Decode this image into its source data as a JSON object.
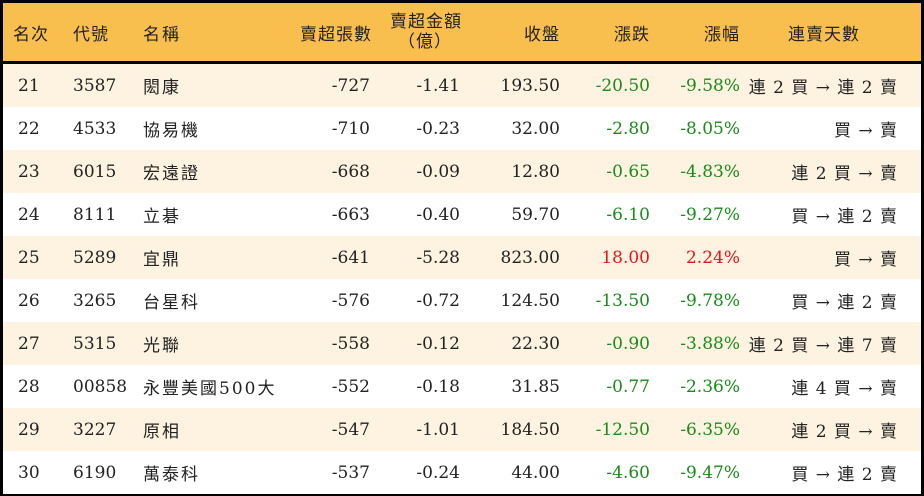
{
  "colors": {
    "header_bg": "#F9BF4E",
    "row_odd_bg": "#FDF3E0",
    "row_even_bg": "#FFFFFF",
    "down": "#1A8A1A",
    "up": "#E8141E",
    "border": "#000000"
  },
  "header": {
    "rank": "名次",
    "code": "代號",
    "name": "名稱",
    "net_sell_volume": "賣超張數",
    "net_sell_amount_line1": "賣超金額",
    "net_sell_amount_line2": "（億）",
    "close": "收盤",
    "change": "漲跌",
    "change_pct": "漲幅",
    "sell_streak": "連賣天數"
  },
  "rows": [
    {
      "rank": "21",
      "code": "3587",
      "name": "閎康",
      "volume": "-727",
      "amount": "-1.41",
      "close": "193.50",
      "change": "-20.50",
      "pct": "-9.58%",
      "streak": "連 2 買 → 連 2 賣",
      "dir": "down"
    },
    {
      "rank": "22",
      "code": "4533",
      "name": "協易機",
      "volume": "-710",
      "amount": "-0.23",
      "close": "32.00",
      "change": "-2.80",
      "pct": "-8.05%",
      "streak": "買 → 賣",
      "dir": "down"
    },
    {
      "rank": "23",
      "code": "6015",
      "name": "宏遠證",
      "volume": "-668",
      "amount": "-0.09",
      "close": "12.80",
      "change": "-0.65",
      "pct": "-4.83%",
      "streak": "連 2 買 → 賣",
      "dir": "down"
    },
    {
      "rank": "24",
      "code": "8111",
      "name": "立碁",
      "volume": "-663",
      "amount": "-0.40",
      "close": "59.70",
      "change": "-6.10",
      "pct": "-9.27%",
      "streak": "買 → 連 2 賣",
      "dir": "down"
    },
    {
      "rank": "25",
      "code": "5289",
      "name": "宜鼎",
      "volume": "-641",
      "amount": "-5.28",
      "close": "823.00",
      "change": "18.00",
      "pct": "2.24%",
      "streak": "買 → 賣",
      "dir": "up"
    },
    {
      "rank": "26",
      "code": "3265",
      "name": "台星科",
      "volume": "-576",
      "amount": "-0.72",
      "close": "124.50",
      "change": "-13.50",
      "pct": "-9.78%",
      "streak": "買 → 連 2 賣",
      "dir": "down"
    },
    {
      "rank": "27",
      "code": "5315",
      "name": "光聯",
      "volume": "-558",
      "amount": "-0.12",
      "close": "22.30",
      "change": "-0.90",
      "pct": "-3.88%",
      "streak": "連 2 買 → 連 7 賣",
      "dir": "down"
    },
    {
      "rank": "28",
      "code": "00858",
      "name": "永豐美國500大",
      "volume": "-552",
      "amount": "-0.18",
      "close": "31.85",
      "change": "-0.77",
      "pct": "-2.36%",
      "streak": "連 4 買 → 賣",
      "dir": "down"
    },
    {
      "rank": "29",
      "code": "3227",
      "name": "原相",
      "volume": "-547",
      "amount": "-1.01",
      "close": "184.50",
      "change": "-12.50",
      "pct": "-6.35%",
      "streak": "連 2 買 → 賣",
      "dir": "down"
    },
    {
      "rank": "30",
      "code": "6190",
      "name": "萬泰科",
      "volume": "-537",
      "amount": "-0.24",
      "close": "44.00",
      "change": "-4.60",
      "pct": "-9.47%",
      "streak": "買 → 連 2 賣",
      "dir": "down"
    }
  ]
}
